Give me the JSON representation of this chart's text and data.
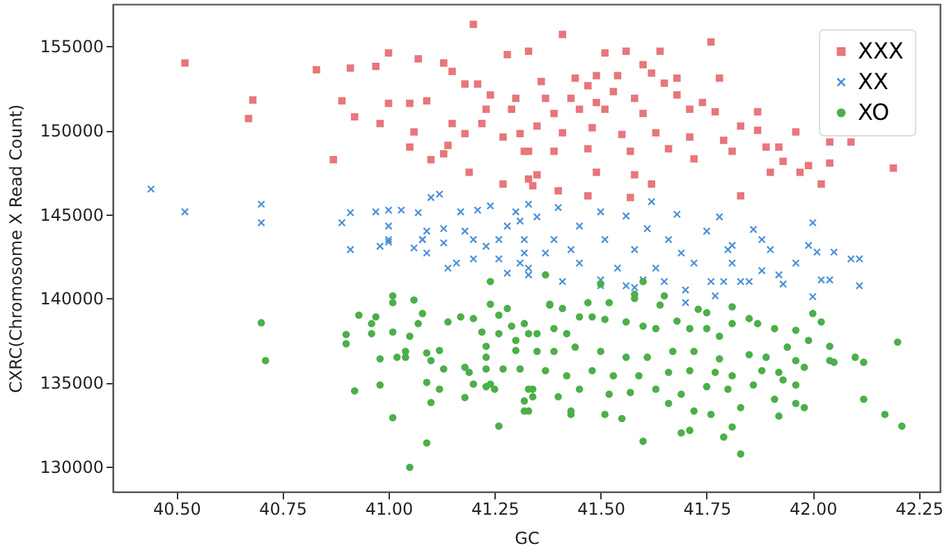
{
  "chart_data": {
    "type": "scatter",
    "xlabel": "GC",
    "ylabel": "CXRC(Chromosome X Read Count)",
    "xlim": [
      40.35,
      42.3
    ],
    "ylim": [
      128500,
      157500
    ],
    "xticks": [
      {
        "value": 40.5,
        "label": "40.50"
      },
      40.75,
      {
        "value": 41.0,
        "label": "41.00"
      },
      41.25,
      {
        "value": 41.5,
        "label": "41.50"
      },
      41.75,
      {
        "value": 42.0,
        "label": "42.00"
      },
      42.25
    ],
    "yticks": [
      130000,
      135000,
      140000,
      145000,
      150000,
      155000
    ],
    "grid": false,
    "legend": "top right",
    "series": [
      {
        "name": "XXX",
        "color": "#e8767a",
        "marker": "square",
        "x": [
          40.52,
          40.68,
          40.67,
          40.83,
          40.87,
          40.91,
          40.97,
          41.0,
          41.07,
          41.13,
          41.2,
          41.28,
          41.33,
          40.89,
          40.92,
          40.98,
          41.0,
          41.05,
          41.06,
          41.05,
          41.09,
          41.1,
          41.13,
          41.14,
          41.18,
          41.19,
          41.22,
          41.23,
          41.24,
          41.27,
          41.27,
          41.29,
          41.3,
          41.31,
          41.32,
          41.33,
          41.34,
          41.15,
          41.18,
          41.21,
          41.15,
          41.41,
          41.76,
          41.51,
          41.56,
          41.64,
          41.6,
          41.62,
          41.78,
          41.44,
          41.49,
          41.54,
          41.68,
          41.36,
          41.47,
          41.53,
          41.65,
          41.37,
          41.43,
          41.49,
          41.58,
          41.68,
          41.74,
          41.39,
          41.45,
          41.51,
          41.6,
          41.71,
          41.77,
          41.87,
          41.83,
          41.35,
          41.41,
          41.48,
          41.55,
          41.63,
          41.71,
          41.79,
          41.87,
          41.96,
          41.33,
          41.39,
          41.47,
          41.57,
          41.66,
          41.72,
          41.81,
          41.89,
          41.92,
          41.93,
          42.04,
          42.09,
          42.04,
          41.99,
          41.97,
          42.02,
          42.19,
          41.35,
          41.49,
          41.58,
          41.62,
          41.4,
          41.47,
          41.57,
          41.83,
          41.9
        ],
        "values": [
          154000,
          151800,
          150700,
          153600,
          148250,
          153700,
          153800,
          154600,
          154250,
          154000,
          156300,
          154500,
          154700,
          151750,
          150800,
          150400,
          151600,
          151600,
          149900,
          149000,
          151750,
          148250,
          148600,
          149100,
          149800,
          147500,
          150400,
          151250,
          152100,
          149600,
          146800,
          151250,
          151900,
          149800,
          148750,
          147100,
          146700,
          153500,
          152750,
          152750,
          150400,
          155700,
          155250,
          154600,
          154700,
          154700,
          153900,
          153400,
          153100,
          153100,
          153250,
          153250,
          153100,
          152900,
          152650,
          152300,
          152800,
          151900,
          151900,
          151650,
          151900,
          152100,
          151650,
          151000,
          151250,
          151250,
          151000,
          151250,
          151100,
          151100,
          150250,
          150250,
          149850,
          150150,
          149750,
          149850,
          149600,
          149400,
          150000,
          149900,
          148750,
          148750,
          148900,
          148750,
          148900,
          148300,
          148750,
          149000,
          149000,
          148150,
          149300,
          149300,
          148050,
          147900,
          147500,
          146800,
          147750,
          147350,
          147500,
          147350,
          146800,
          146400,
          146100,
          146000,
          146100,
          147500
        ]
      },
      {
        "name": "XX",
        "color": "#4a8fd8",
        "marker": "cross",
        "x": [
          40.44,
          40.52,
          40.7,
          40.7,
          40.89,
          40.91,
          40.97,
          41.0,
          41.03,
          41.07,
          41.1,
          41.12,
          41.17,
          41.21,
          41.24,
          41.3,
          41.33,
          41.0,
          41.09,
          41.13,
          41.18,
          41.28,
          41.31,
          41.0,
          41.08,
          41.13,
          41.2,
          41.26,
          41.32,
          40.91,
          40.98,
          41.0,
          41.06,
          41.09,
          41.08,
          41.14,
          41.16,
          41.2,
          41.23,
          41.28,
          41.31,
          41.33,
          41.26,
          41.32,
          41.62,
          41.5,
          41.4,
          41.78,
          41.86,
          42.0,
          41.68,
          41.56,
          41.35,
          41.45,
          41.61,
          41.75,
          41.39,
          41.51,
          41.66,
          41.81,
          41.88,
          41.99,
          42.01,
          42.05,
          42.09,
          42.11,
          42.11,
          42.0,
          42.04,
          42.02,
          41.93,
          41.92,
          41.96,
          41.88,
          41.9,
          41.85,
          41.83,
          41.79,
          41.76,
          41.77,
          41.7,
          41.7,
          41.65,
          41.6,
          41.58,
          41.56,
          41.5,
          41.5,
          41.41,
          41.45,
          41.54,
          41.63,
          41.72,
          41.81,
          41.37,
          41.43,
          41.58,
          41.69,
          41.8,
          41.33
        ],
        "values": [
          146500,
          145150,
          145600,
          144500,
          144500,
          145100,
          145150,
          145250,
          145250,
          145100,
          146000,
          146200,
          145150,
          145250,
          145500,
          145150,
          145600,
          144300,
          144000,
          144150,
          144000,
          144300,
          144600,
          143500,
          143500,
          143300,
          143500,
          143500,
          143500,
          142900,
          143100,
          143350,
          143000,
          142700,
          143500,
          141800,
          142100,
          142350,
          143100,
          141500,
          142100,
          141400,
          142350,
          142700,
          145750,
          145150,
          145400,
          144850,
          144100,
          144500,
          145000,
          144900,
          144850,
          144300,
          144150,
          144000,
          143500,
          143500,
          143500,
          143150,
          143500,
          143150,
          142750,
          142750,
          142350,
          142350,
          140750,
          140100,
          141100,
          141100,
          140850,
          141400,
          142100,
          141650,
          142900,
          141000,
          141000,
          141000,
          141000,
          140150,
          140500,
          139750,
          141000,
          141100,
          140650,
          140750,
          140750,
          141100,
          141000,
          142100,
          141800,
          141800,
          142100,
          142100,
          142700,
          142900,
          142900,
          142700,
          142900,
          141800
        ]
      },
      {
        "name": "XO",
        "color": "#4caf4a",
        "marker": "circle",
        "x": [
          40.7,
          40.71,
          40.9,
          40.9,
          40.93,
          40.92,
          40.96,
          40.96,
          40.97,
          40.98,
          40.98,
          41.01,
          41.01,
          41.01,
          41.01,
          41.02,
          41.04,
          41.04,
          41.05,
          41.06,
          41.07,
          41.08,
          41.05,
          41.09,
          41.1,
          41.09,
          41.1,
          41.09,
          41.12,
          41.12,
          41.13,
          41.14,
          41.17,
          41.18,
          41.18,
          41.19,
          41.2,
          41.2,
          41.23,
          41.23,
          41.24,
          41.24,
          41.24,
          41.25,
          41.22,
          41.23,
          41.23,
          41.26,
          41.26,
          41.26,
          41.27,
          41.28,
          41.29,
          41.3,
          41.3,
          41.31,
          41.32,
          41.32,
          41.33,
          41.34,
          41.33,
          41.33,
          41.37,
          41.38,
          41.41,
          41.47,
          41.5,
          41.52,
          41.58,
          41.58,
          41.6,
          41.65,
          41.64,
          41.73,
          41.75,
          41.81,
          42.0,
          42.02,
          42.2,
          42.04,
          41.99,
          41.96,
          41.94,
          41.91,
          41.87,
          41.85,
          41.81,
          41.78,
          41.75,
          41.71,
          41.68,
          41.63,
          41.6,
          41.56,
          41.51,
          41.48,
          41.45,
          41.42,
          41.39,
          41.35,
          41.35,
          41.39,
          41.44,
          41.5,
          41.56,
          41.61,
          41.67,
          41.72,
          41.78,
          41.85,
          41.89,
          41.96,
          42.04,
          42.12,
          42.1,
          42.05,
          41.98,
          41.92,
          41.88,
          41.81,
          41.77,
          41.71,
          41.66,
          41.59,
          41.53,
          41.48,
          41.42,
          41.37,
          41.34,
          41.4,
          41.45,
          41.52,
          41.57,
          41.63,
          41.69,
          41.75,
          41.8,
          41.86,
          41.93,
          41.96,
          41.91,
          41.96,
          41.98,
          42.12,
          42.17,
          42.21,
          41.92,
          41.83,
          41.81,
          41.79,
          41.83,
          41.71,
          41.69,
          41.6,
          41.76,
          41.72,
          41.66,
          41.55,
          41.51,
          41.43,
          41.43,
          41.32,
          41.38
        ],
        "values": [
          138550,
          136300,
          137850,
          137300,
          139000,
          134500,
          138500,
          137900,
          138900,
          136400,
          134850,
          138000,
          132900,
          140150,
          139750,
          136500,
          136850,
          136500,
          137750,
          139900,
          138500,
          139100,
          129950,
          136750,
          136300,
          135000,
          133800,
          131400,
          134600,
          136900,
          135800,
          138600,
          138900,
          135900,
          134100,
          135600,
          138800,
          134900,
          134750,
          135800,
          141000,
          134900,
          139650,
          134600,
          138000,
          137150,
          136500,
          132400,
          139000,
          137900,
          135800,
          139400,
          138350,
          137500,
          136900,
          135800,
          138500,
          133900,
          133300,
          134150,
          134600,
          137900,
          141400,
          139650,
          139400,
          139750,
          140850,
          139750,
          140000,
          140250,
          141000,
          140150,
          139600,
          139350,
          139150,
          139500,
          139100,
          138600,
          137400,
          137150,
          137500,
          138100,
          137100,
          138200,
          138500,
          138800,
          138500,
          137750,
          138200,
          138200,
          138650,
          138200,
          138350,
          138600,
          138750,
          138900,
          138900,
          137900,
          138200,
          137900,
          136850,
          136850,
          137100,
          136850,
          136500,
          136500,
          136850,
          136850,
          136400,
          136650,
          136500,
          136300,
          136300,
          136200,
          136500,
          136200,
          135900,
          135600,
          135700,
          135400,
          135600,
          135700,
          135600,
          135400,
          135400,
          135700,
          135400,
          135700,
          134600,
          134150,
          134600,
          134300,
          134400,
          134600,
          134300,
          134750,
          134600,
          134850,
          135150,
          134850,
          134000,
          133750,
          133500,
          134000,
          133100,
          132400,
          133000,
          133500,
          132350,
          131750,
          130750,
          132150,
          132000,
          131500,
          133100,
          133300,
          133750,
          132850,
          133100,
          133100,
          133300,
          133300,
          139600
        ]
      }
    ]
  }
}
